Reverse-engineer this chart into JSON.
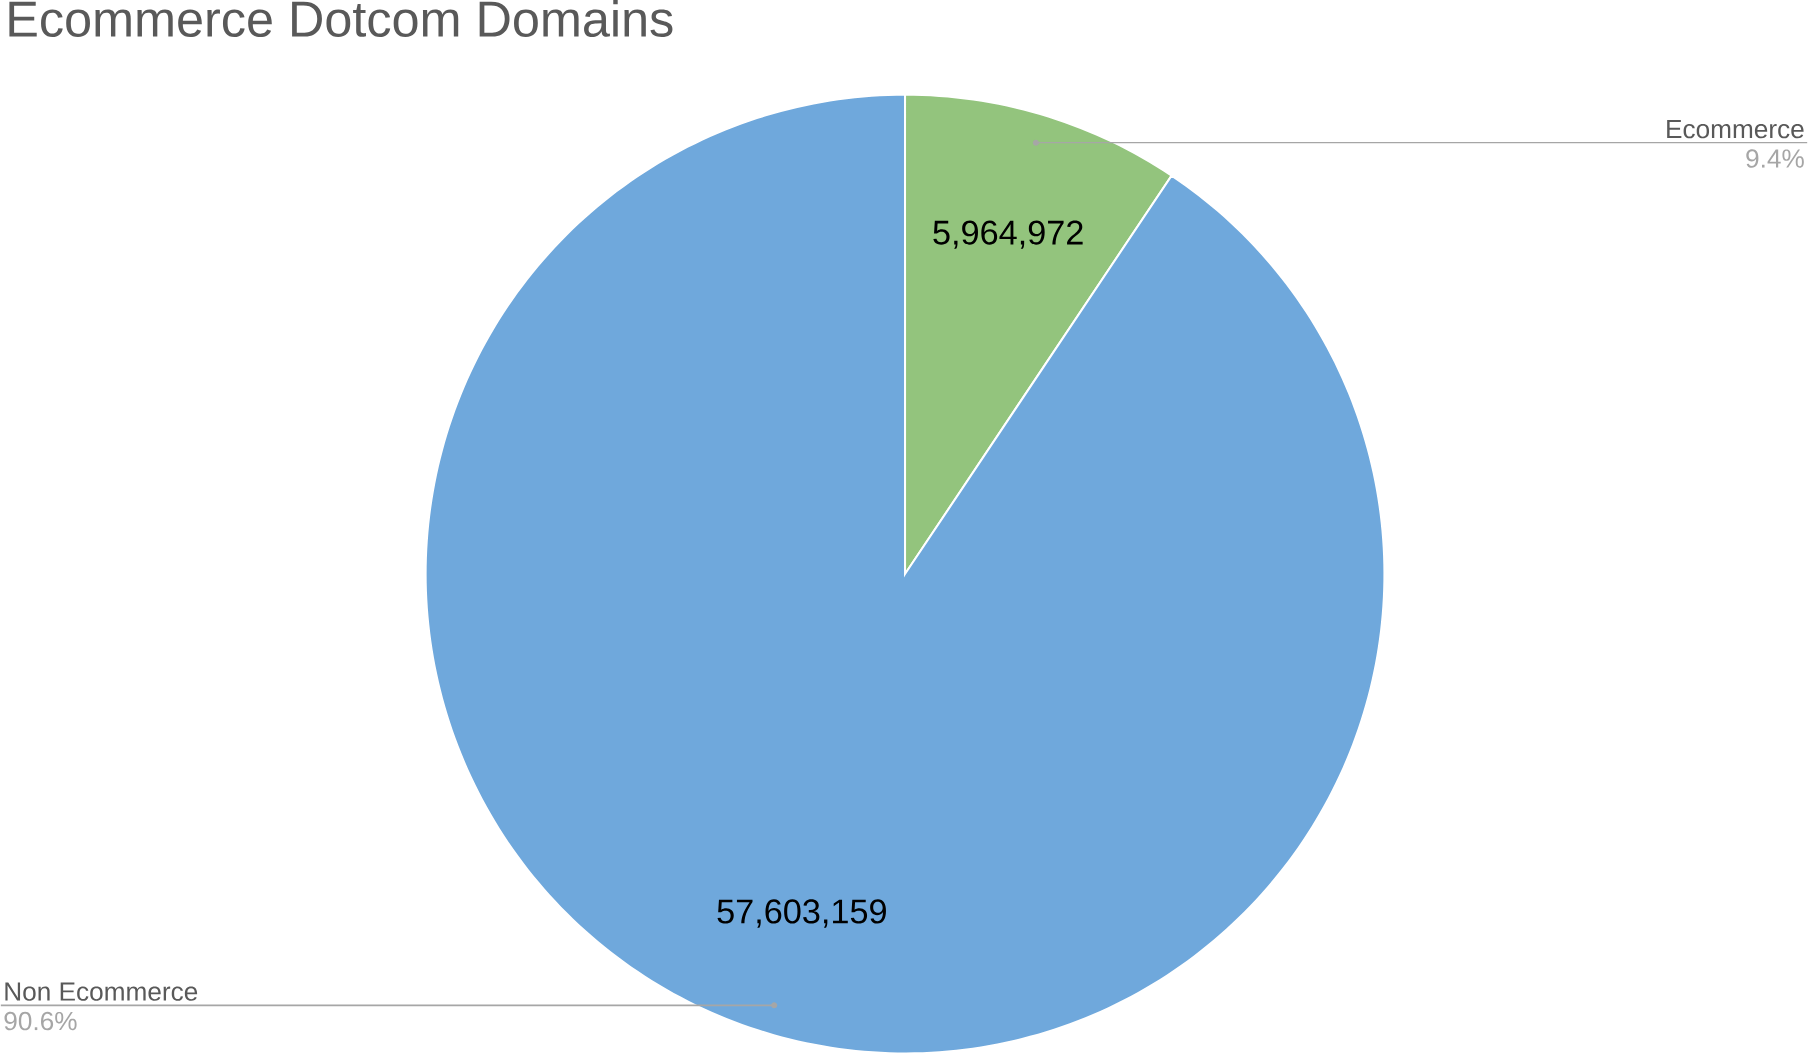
{
  "chart_data": {
    "type": "pie",
    "title": "Ecommerce Dotcom Domains",
    "categories": [
      "Ecommerce",
      "Non Ecommerce"
    ],
    "values": [
      5964972,
      57603159
    ],
    "colors": [
      "#93c47d",
      "#6fa8dc"
    ],
    "value_labels": [
      "5,964,972",
      "57,603,159"
    ],
    "annotations": [
      "9.4%",
      "90.6%"
    ]
  }
}
